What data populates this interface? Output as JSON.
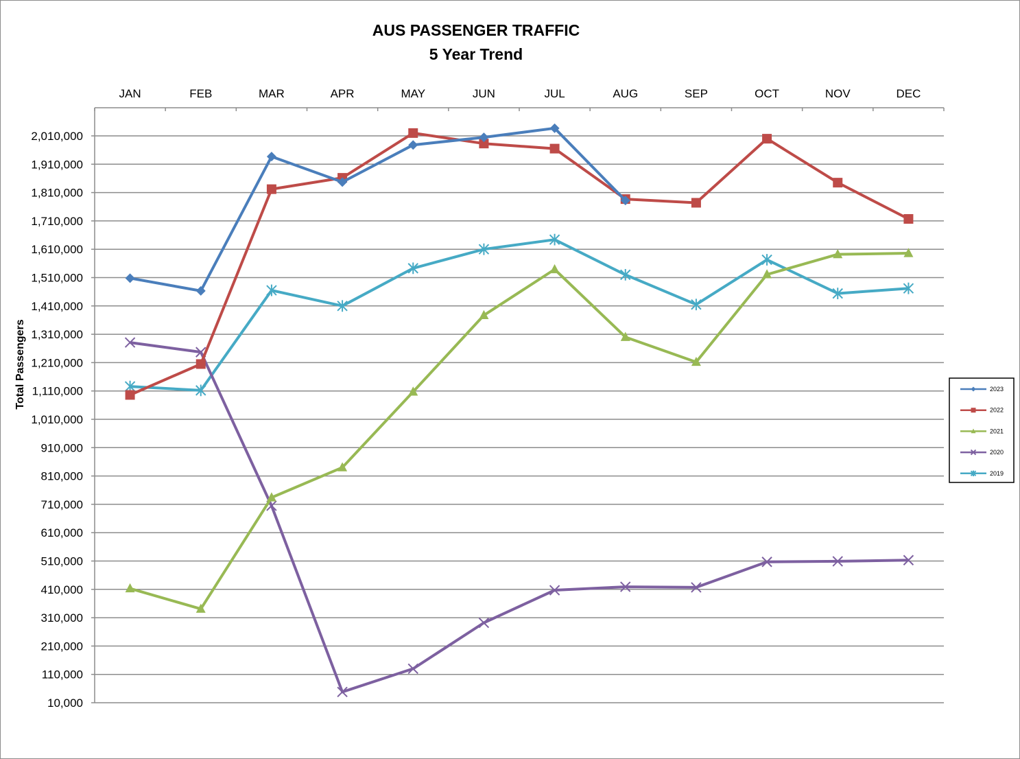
{
  "chart_data": {
    "type": "line",
    "title": "AUS PASSENGER TRAFFIC",
    "subtitle": "5 Year Trend",
    "ylabel": "Total Passengers",
    "xlabel": "",
    "categories": [
      "JAN",
      "FEB",
      "MAR",
      "APR",
      "MAY",
      "JUN",
      "JUL",
      "AUG",
      "SEP",
      "OCT",
      "NOV",
      "DEC"
    ],
    "ylim": [
      10000,
      2010000
    ],
    "yticks": [
      10000,
      110000,
      210000,
      310000,
      410000,
      510000,
      610000,
      710000,
      810000,
      910000,
      1010000,
      1110000,
      1210000,
      1310000,
      1410000,
      1510000,
      1610000,
      1710000,
      1810000,
      1910000,
      2010000
    ],
    "ytick_labels": [
      "10,000",
      "110,000",
      "210,000",
      "310,000",
      "410,000",
      "510,000",
      "610,000",
      "710,000",
      "810,000",
      "910,000",
      "1,010,000",
      "1,110,000",
      "1,210,000",
      "1,310,000",
      "1,410,000",
      "1,510,000",
      "1,610,000",
      "1,710,000",
      "1,810,000",
      "1,910,000",
      "2,010,000"
    ],
    "x_axis_position": "top",
    "grid": true,
    "legend_position": "right",
    "series": [
      {
        "name": "2023",
        "color": "#4a7ebb",
        "marker": "diamond",
        "values": [
          1508000,
          1463000,
          1937000,
          1847000,
          1978000,
          2005000,
          2037000,
          1782000,
          null,
          null,
          null,
          null
        ]
      },
      {
        "name": "2022",
        "color": "#be4b48",
        "marker": "square",
        "values": [
          1096000,
          1205000,
          1822000,
          1862000,
          2020000,
          1983000,
          1965000,
          1787000,
          1774000,
          2000000,
          1845000,
          1717000
        ]
      },
      {
        "name": "2021",
        "color": "#98b954",
        "marker": "triangle",
        "values": [
          413000,
          341000,
          734000,
          840000,
          1107000,
          1377000,
          1539000,
          1300000,
          1212000,
          1521000,
          1592000,
          1596000
        ]
      },
      {
        "name": "2020",
        "color": "#7d60a0",
        "marker": "x",
        "values": [
          1281000,
          1247000,
          705000,
          48000,
          130000,
          292000,
          407000,
          419000,
          417000,
          507000,
          509000,
          513000
        ]
      },
      {
        "name": "2019",
        "color": "#46aac5",
        "marker": "star",
        "values": [
          1126000,
          1112000,
          1465000,
          1410000,
          1543000,
          1610000,
          1644000,
          1520000,
          1415000,
          1573000,
          1454000,
          1472000
        ]
      }
    ]
  }
}
